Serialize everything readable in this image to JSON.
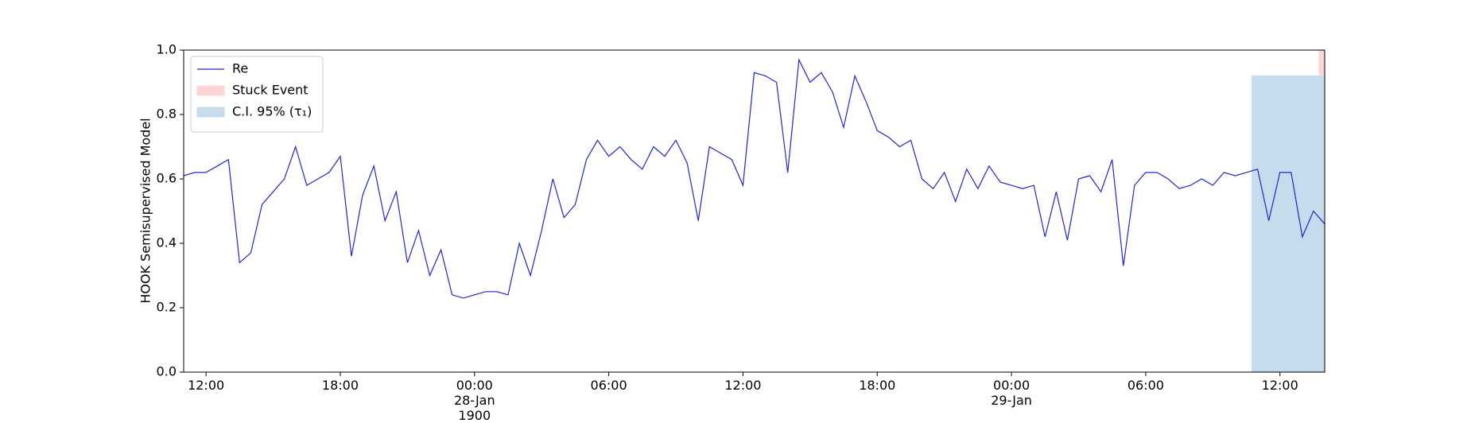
{
  "chart_data": {
    "type": "line",
    "ylabel": "HOOK Semisupervised Model",
    "legend": "upper left",
    "x": [
      "1900-01-27 11:00",
      "1900-01-27 11:30",
      "1900-01-27 12:00",
      "1900-01-27 12:30",
      "1900-01-27 13:00",
      "1900-01-27 13:30",
      "1900-01-27 14:00",
      "1900-01-27 14:30",
      "1900-01-27 15:00",
      "1900-01-27 15:30",
      "1900-01-27 16:00",
      "1900-01-27 16:30",
      "1900-01-27 17:00",
      "1900-01-27 17:30",
      "1900-01-27 18:00",
      "1900-01-27 18:30",
      "1900-01-27 19:00",
      "1900-01-27 19:30",
      "1900-01-27 20:00",
      "1900-01-27 20:30",
      "1900-01-27 21:00",
      "1900-01-27 21:30",
      "1900-01-27 22:00",
      "1900-01-27 22:30",
      "1900-01-27 23:00",
      "1900-01-27 23:30",
      "1900-01-28 00:00",
      "1900-01-28 00:30",
      "1900-01-28 01:00",
      "1900-01-28 01:30",
      "1900-01-28 02:00",
      "1900-01-28 02:30",
      "1900-01-28 03:00",
      "1900-01-28 03:30",
      "1900-01-28 04:00",
      "1900-01-28 04:30",
      "1900-01-28 05:00",
      "1900-01-28 05:30",
      "1900-01-28 06:00",
      "1900-01-28 06:30",
      "1900-01-28 07:00",
      "1900-01-28 07:30",
      "1900-01-28 08:00",
      "1900-01-28 08:30",
      "1900-01-28 09:00",
      "1900-01-28 09:30",
      "1900-01-28 10:00",
      "1900-01-28 10:30",
      "1900-01-28 11:00",
      "1900-01-28 11:30",
      "1900-01-28 12:00",
      "1900-01-28 12:30",
      "1900-01-28 13:00",
      "1900-01-28 13:30",
      "1900-01-28 14:00",
      "1900-01-28 14:30",
      "1900-01-28 15:00",
      "1900-01-28 15:30",
      "1900-01-28 16:00",
      "1900-01-28 16:30",
      "1900-01-28 17:00",
      "1900-01-28 17:30",
      "1900-01-28 18:00",
      "1900-01-28 18:30",
      "1900-01-28 19:00",
      "1900-01-28 19:30",
      "1900-01-28 20:00",
      "1900-01-28 20:30",
      "1900-01-28 21:00",
      "1900-01-28 21:30",
      "1900-01-28 22:00",
      "1900-01-28 22:30",
      "1900-01-28 23:00",
      "1900-01-28 23:30",
      "1900-01-29 00:00",
      "1900-01-29 00:30",
      "1900-01-29 01:00",
      "1900-01-29 01:30",
      "1900-01-29 02:00",
      "1900-01-29 02:30",
      "1900-01-29 03:00",
      "1900-01-29 03:30",
      "1900-01-29 04:00",
      "1900-01-29 04:30",
      "1900-01-29 05:00",
      "1900-01-29 05:30",
      "1900-01-29 06:00",
      "1900-01-29 06:30",
      "1900-01-29 07:00",
      "1900-01-29 07:30",
      "1900-01-29 08:00",
      "1900-01-29 08:30",
      "1900-01-29 09:00",
      "1900-01-29 09:30",
      "1900-01-29 10:00",
      "1900-01-29 10:30",
      "1900-01-29 11:00",
      "1900-01-29 11:30",
      "1900-01-29 12:00",
      "1900-01-29 12:30",
      "1900-01-29 13:00",
      "1900-01-29 13:30",
      "1900-01-29 14:00"
    ],
    "series": [
      {
        "name": "Re",
        "color": "#2424d0",
        "values": [
          0.61,
          0.62,
          0.62,
          0.64,
          0.66,
          0.34,
          0.37,
          0.52,
          0.56,
          0.6,
          0.7,
          0.58,
          0.6,
          0.62,
          0.67,
          0.36,
          0.55,
          0.64,
          0.47,
          0.56,
          0.34,
          0.44,
          0.3,
          0.38,
          0.24,
          0.23,
          0.24,
          0.25,
          0.25,
          0.24,
          0.4,
          0.3,
          0.44,
          0.6,
          0.48,
          0.52,
          0.66,
          0.72,
          0.67,
          0.7,
          0.66,
          0.63,
          0.7,
          0.67,
          0.72,
          0.65,
          0.47,
          0.7,
          0.68,
          0.66,
          0.58,
          0.93,
          0.92,
          0.9,
          0.62,
          0.97,
          0.9,
          0.93,
          0.87,
          0.76,
          0.92,
          0.84,
          0.75,
          0.73,
          0.7,
          0.72,
          0.6,
          0.57,
          0.62,
          0.53,
          0.63,
          0.57,
          0.64,
          0.59,
          0.58,
          0.57,
          0.58,
          0.42,
          0.56,
          0.41,
          0.6,
          0.61,
          0.56,
          0.66,
          0.33,
          0.58,
          0.62,
          0.62,
          0.6,
          0.57,
          0.58,
          0.6,
          0.58,
          0.62,
          0.61,
          0.62,
          0.63,
          0.47,
          0.62,
          0.62,
          0.42,
          0.5,
          0.46
        ]
      }
    ],
    "regions": [
      {
        "name": "Stuck Event",
        "color": "#fbd5d5",
        "x": [
          "1900-01-29 13:45",
          "1900-01-29 14:00"
        ]
      },
      {
        "name": "C.I. 95% (τ₁)",
        "color": "#c6dcec",
        "x": [
          "1900-01-29 10:45",
          "1900-01-29 14:00"
        ],
        "y": [
          0,
          0.92
        ]
      }
    ],
    "xlim": [
      "1900-01-27 11:00",
      "1900-01-29 14:00"
    ],
    "xticks": [
      {
        "value": "1900-01-27 12:00",
        "label": "12:00"
      },
      {
        "value": "1900-01-27 18:00",
        "label": "18:00"
      },
      {
        "value": "1900-01-28 00:00",
        "label": "00:00\n28-Jan\n1900"
      },
      {
        "value": "1900-01-28 06:00",
        "label": "06:00"
      },
      {
        "value": "1900-01-28 12:00",
        "label": "12:00"
      },
      {
        "value": "1900-01-28 18:00",
        "label": "18:00"
      },
      {
        "value": "1900-01-29 00:00",
        "label": "00:00\n29-Jan"
      },
      {
        "value": "1900-01-29 06:00",
        "label": "06:00"
      },
      {
        "value": "1900-01-29 12:00",
        "label": "12:00"
      }
    ],
    "ylim": [
      0,
      1
    ],
    "yticks": [
      {
        "value": 0,
        "label": "0.0"
      },
      {
        "value": 0.2,
        "label": "0.2"
      },
      {
        "value": 0.4,
        "label": "0.4"
      },
      {
        "value": 0.6,
        "label": "0.6"
      },
      {
        "value": 0.8,
        "label": "0.8"
      },
      {
        "value": 1,
        "label": "1.0"
      }
    ]
  }
}
